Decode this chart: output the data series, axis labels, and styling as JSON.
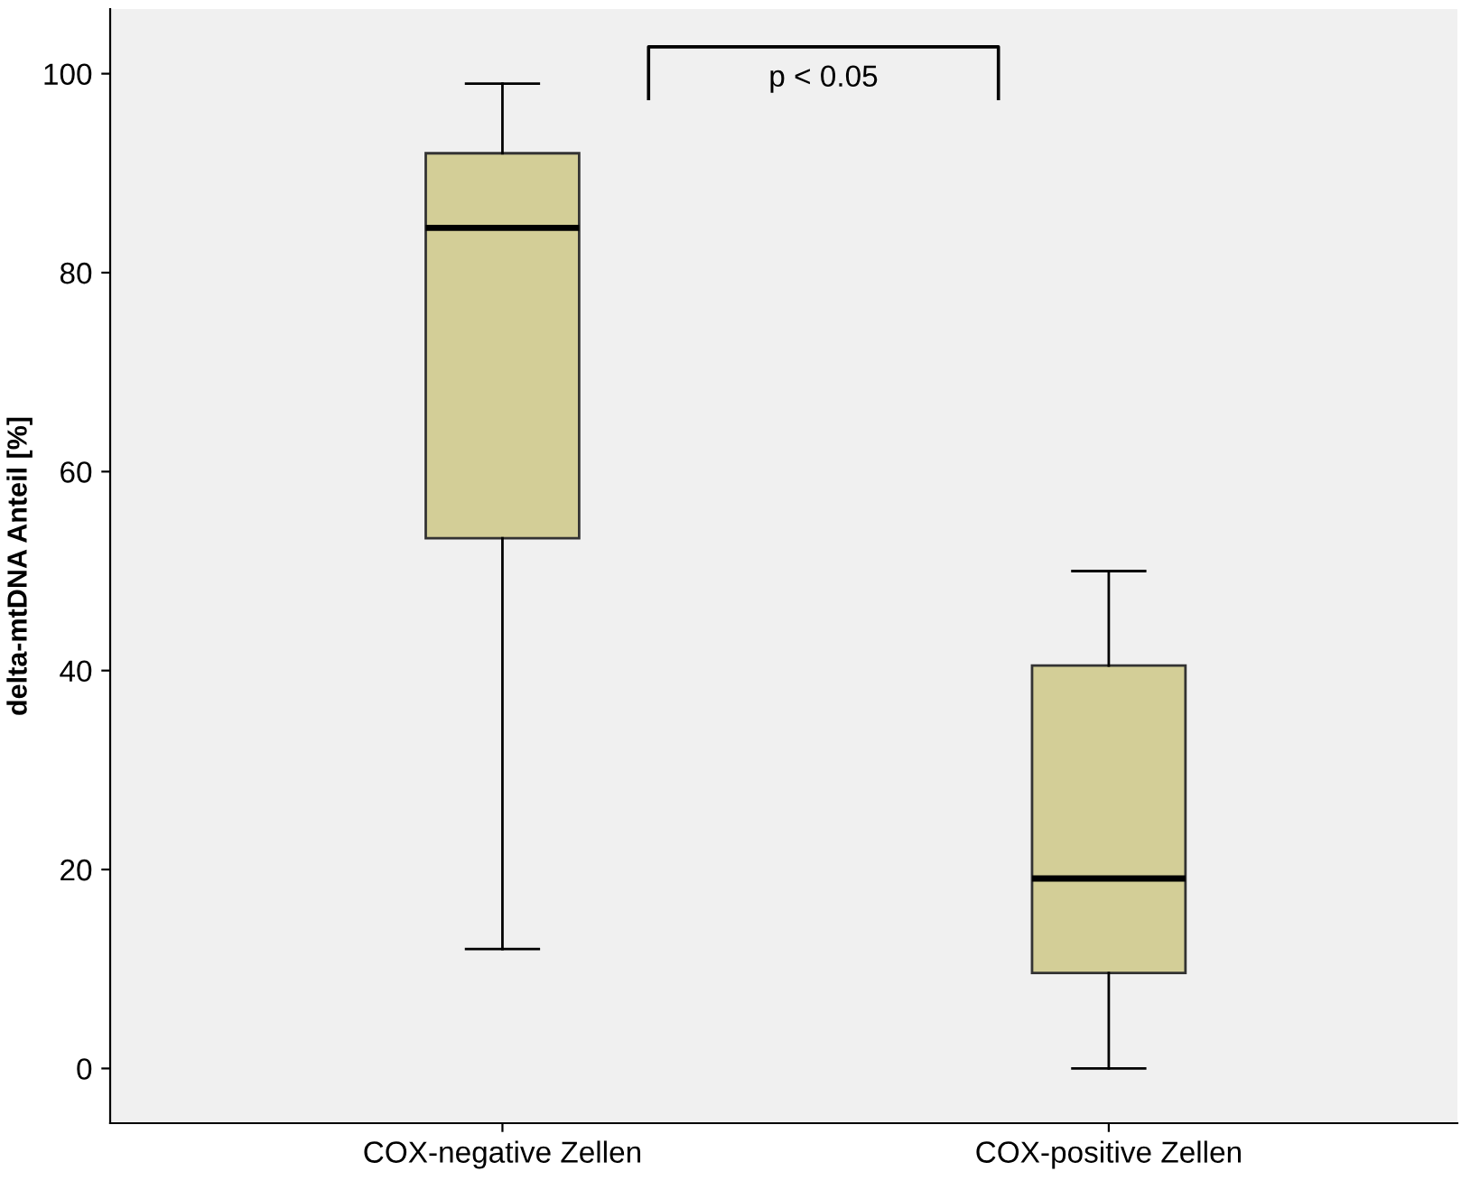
{
  "chart_data": {
    "type": "box",
    "ylabel": "delta-mtDNA Anteil [%]",
    "categories": [
      "COX-negative Zellen",
      "COX-positive Zellen"
    ],
    "boxes": [
      {
        "low": 12,
        "q1": 53.3,
        "median": 84.5,
        "q3": 92,
        "high": 99
      },
      {
        "low": 0,
        "q1": 9.6,
        "median": 19.1,
        "q3": 40.5,
        "high": 50
      }
    ],
    "color": "#d3ce97",
    "ylim": [
      -5.5,
      106.5
    ],
    "yticks": [
      0,
      20,
      40,
      60,
      80,
      100
    ],
    "grid": false,
    "annotations": [
      "p < 0.05"
    ]
  }
}
